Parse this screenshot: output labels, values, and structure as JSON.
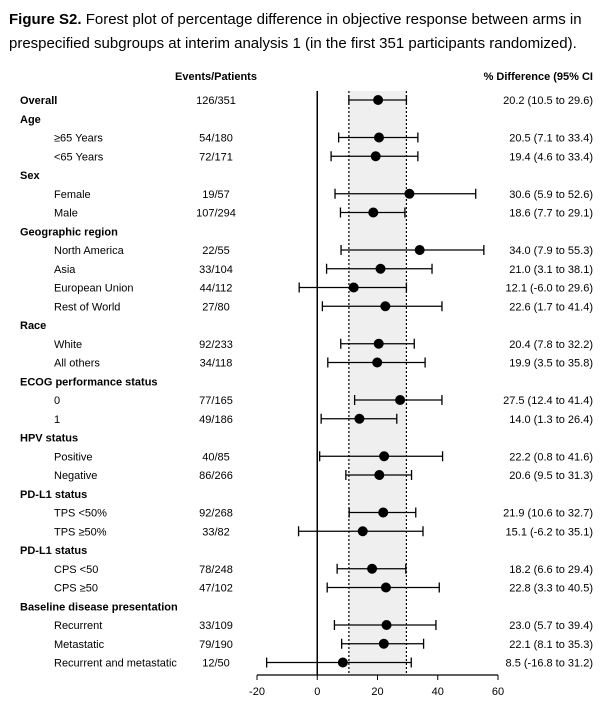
{
  "caption": {
    "label": "Figure S2.",
    "line1": " Forest plot of percentage difference in objective response between arms in",
    "line2": "prespecified subgroups at interim analysis 1 (in the first 351 participants randomized)."
  },
  "chart_data": {
    "type": "forest",
    "columns": {
      "events": "Events/Patients",
      "diff": "% Difference (95% CI"
    },
    "xlim": [
      -20,
      60
    ],
    "xticks": [
      -20,
      0,
      20,
      40,
      60
    ],
    "reference_lines": [
      10.5,
      29.6
    ],
    "shaded_band": [
      10.5,
      29.6
    ],
    "rows": [
      {
        "kind": "group",
        "label": "Overall",
        "events": "126/351",
        "est": 20.2,
        "lo": 10.5,
        "hi": 29.6,
        "ci_text": "20.2 (10.5 to 29.6)"
      },
      {
        "kind": "group",
        "label": "Age"
      },
      {
        "kind": "sub",
        "label": "≥65 Years",
        "events": "54/180",
        "est": 20.5,
        "lo": 7.1,
        "hi": 33.4,
        "ci_text": "20.5 (7.1 to 33.4)"
      },
      {
        "kind": "sub",
        "label": "<65 Years",
        "events": "72/171",
        "est": 19.4,
        "lo": 4.6,
        "hi": 33.4,
        "ci_text": "19.4 (4.6 to 33.4)"
      },
      {
        "kind": "group",
        "label": "Sex"
      },
      {
        "kind": "sub",
        "label": "Female",
        "events": "19/57",
        "est": 30.6,
        "lo": 5.9,
        "hi": 52.6,
        "ci_text": "30.6 (5.9 to 52.6)"
      },
      {
        "kind": "sub",
        "label": "Male",
        "events": "107/294",
        "est": 18.6,
        "lo": 7.7,
        "hi": 29.1,
        "ci_text": "18.6 (7.7 to 29.1)"
      },
      {
        "kind": "group",
        "label": "Geographic region"
      },
      {
        "kind": "sub",
        "label": "North America",
        "events": "22/55",
        "est": 34.0,
        "lo": 7.9,
        "hi": 55.3,
        "ci_text": "34.0 (7.9 to 55.3)"
      },
      {
        "kind": "sub",
        "label": "Asia",
        "events": "33/104",
        "est": 21.0,
        "lo": 3.1,
        "hi": 38.1,
        "ci_text": "21.0 (3.1 to 38.1)"
      },
      {
        "kind": "sub",
        "label": "European Union",
        "events": "44/112",
        "est": 12.1,
        "lo": -6.0,
        "hi": 29.6,
        "ci_text": "12.1 (-6.0 to 29.6)"
      },
      {
        "kind": "sub",
        "label": "Rest of World",
        "events": "27/80",
        "est": 22.6,
        "lo": 1.7,
        "hi": 41.4,
        "ci_text": "22.6 (1.7 to 41.4)"
      },
      {
        "kind": "group",
        "label": "Race"
      },
      {
        "kind": "sub",
        "label": "White",
        "events": "92/233",
        "est": 20.4,
        "lo": 7.8,
        "hi": 32.2,
        "ci_text": "20.4 (7.8 to 32.2)"
      },
      {
        "kind": "sub",
        "label": "All others",
        "events": "34/118",
        "est": 19.9,
        "lo": 3.5,
        "hi": 35.8,
        "ci_text": "19.9 (3.5 to 35.8)"
      },
      {
        "kind": "group",
        "label": "ECOG performance status"
      },
      {
        "kind": "sub",
        "label": "0",
        "events": "77/165",
        "est": 27.5,
        "lo": 12.4,
        "hi": 41.4,
        "ci_text": "27.5 (12.4 to 41.4)"
      },
      {
        "kind": "sub",
        "label": "1",
        "events": "49/186",
        "est": 14.0,
        "lo": 1.3,
        "hi": 26.4,
        "ci_text": "14.0 (1.3 to 26.4)"
      },
      {
        "kind": "group",
        "label": "HPV status"
      },
      {
        "kind": "sub",
        "label": "Positive",
        "events": "40/85",
        "est": 22.2,
        "lo": 0.8,
        "hi": 41.6,
        "ci_text": "22.2 (0.8 to 41.6)"
      },
      {
        "kind": "sub",
        "label": "Negative",
        "events": "86/266",
        "est": 20.6,
        "lo": 9.5,
        "hi": 31.3,
        "ci_text": "20.6 (9.5 to 31.3)"
      },
      {
        "kind": "group",
        "label": "PD-L1 status"
      },
      {
        "kind": "sub",
        "label": "TPS <50%",
        "events": "92/268",
        "est": 21.9,
        "lo": 10.6,
        "hi": 32.7,
        "ci_text": "21.9 (10.6 to 32.7)"
      },
      {
        "kind": "sub",
        "label": "TPS ≥50%",
        "events": "33/82",
        "est": 15.1,
        "lo": -6.2,
        "hi": 35.1,
        "ci_text": "15.1 (-6.2 to 35.1)"
      },
      {
        "kind": "group",
        "label": "PD-L1 status"
      },
      {
        "kind": "sub",
        "label": "CPS <50",
        "events": "78/248",
        "est": 18.2,
        "lo": 6.6,
        "hi": 29.4,
        "ci_text": "18.2 (6.6 to 29.4)"
      },
      {
        "kind": "sub",
        "label": "CPS ≥50",
        "events": "47/102",
        "est": 22.8,
        "lo": 3.3,
        "hi": 40.5,
        "ci_text": "22.8 (3.3 to 40.5)"
      },
      {
        "kind": "group",
        "label": "Baseline disease presentation"
      },
      {
        "kind": "sub",
        "label": "Recurrent",
        "events": "33/109",
        "est": 23.0,
        "lo": 5.7,
        "hi": 39.4,
        "ci_text": "23.0 (5.7 to 39.4)"
      },
      {
        "kind": "sub",
        "label": "Metastatic",
        "events": "79/190",
        "est": 22.1,
        "lo": 8.1,
        "hi": 35.3,
        "ci_text": "22.1 (8.1 to 35.3)"
      },
      {
        "kind": "sub",
        "label": "Recurrent and metastatic",
        "events": "12/50",
        "est": 8.5,
        "lo": -16.8,
        "hi": 31.2,
        "ci_text": "8.5 (-16.8 to 31.2)"
      }
    ],
    "colors": {
      "band": "#efefef",
      "marks": "#000000"
    }
  }
}
